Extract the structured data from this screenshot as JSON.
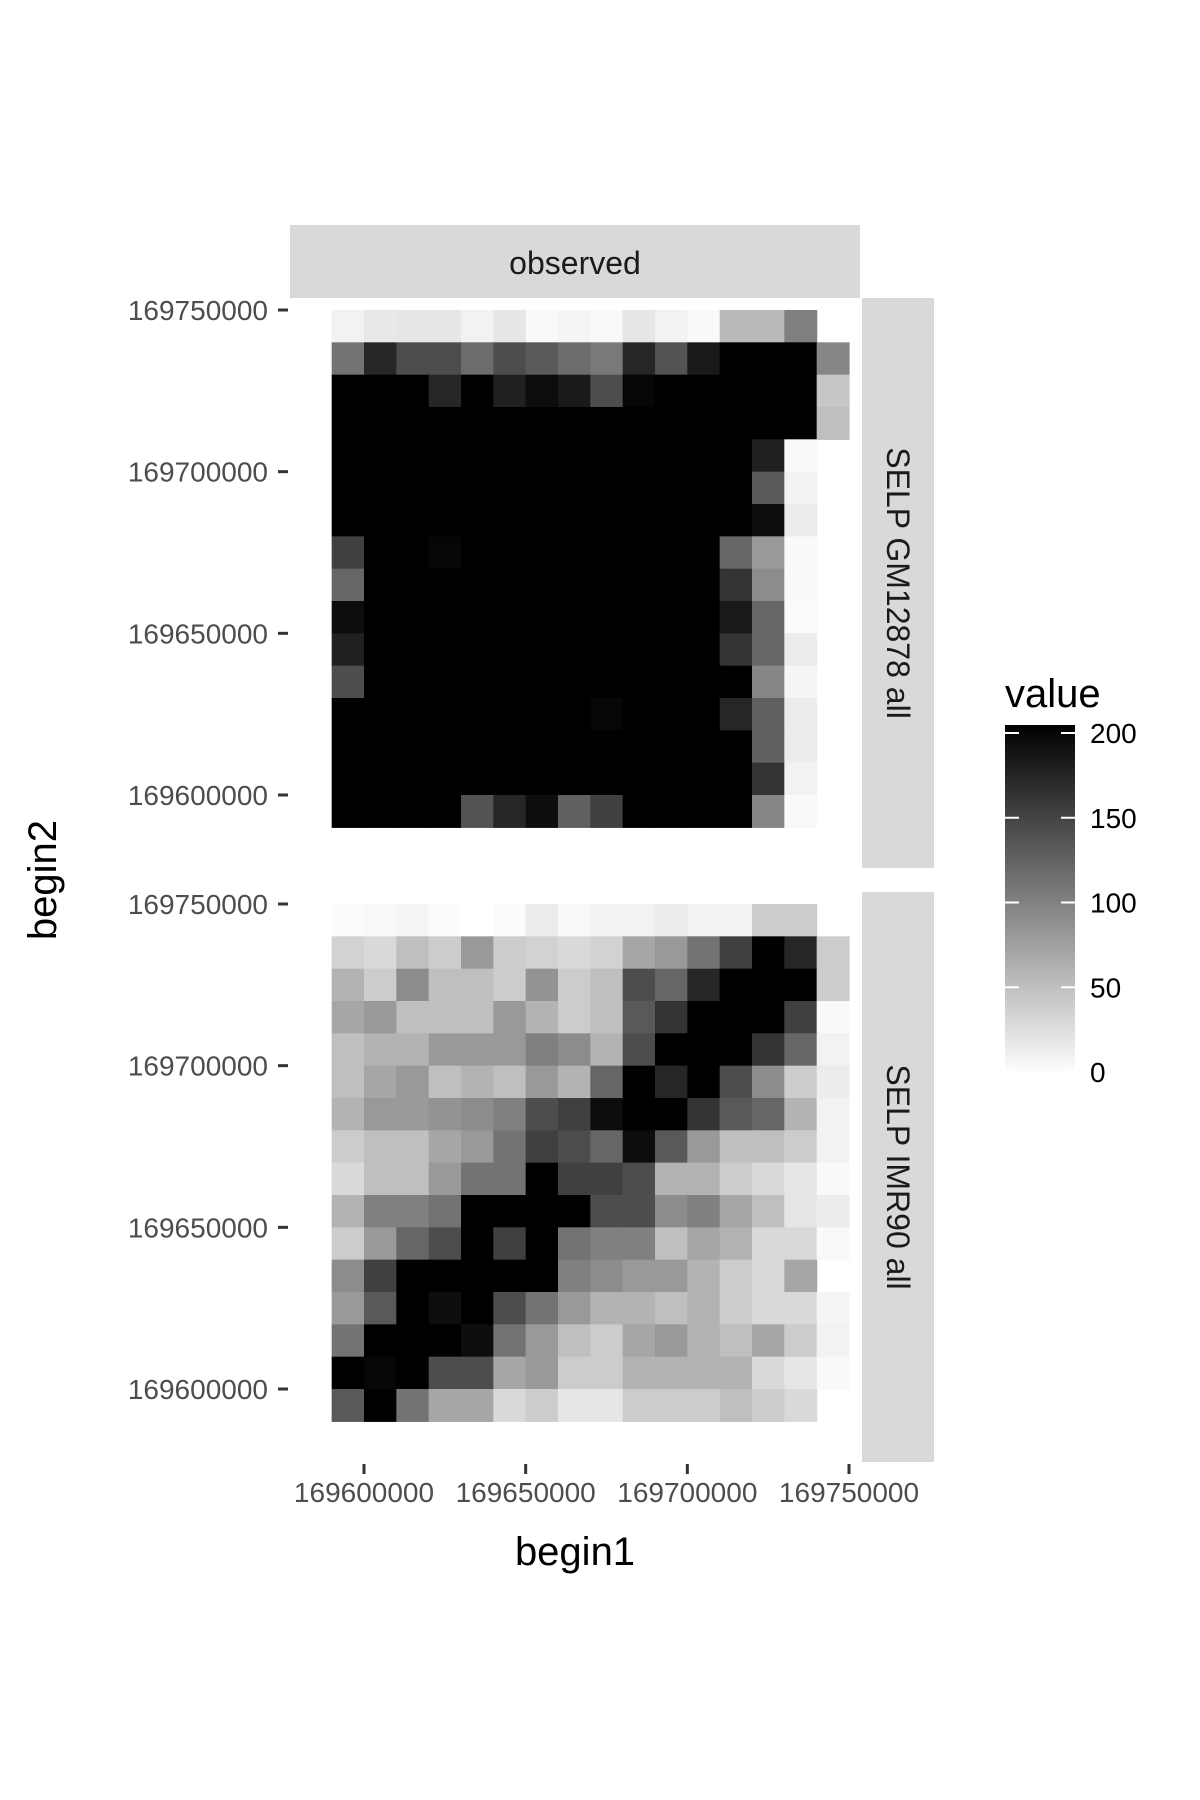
{
  "chart_data": {
    "type": "heatmap",
    "title": "",
    "xlabel": "begin1",
    "ylabel": "begin2",
    "x_ticks": [
      169600000,
      169650000,
      169700000,
      169750000
    ],
    "y_ticks": [
      169600000,
      169650000,
      169700000,
      169750000
    ],
    "x_tick_labels": [
      "169600000",
      "169650000",
      "169700000",
      "169750000"
    ],
    "y_tick_labels": [
      "169600000",
      "169650000",
      "169700000",
      "169750000"
    ],
    "bin_size": 10000,
    "x_bins": [
      169590000,
      169600000,
      169610000,
      169620000,
      169630000,
      169640000,
      169650000,
      169660000,
      169670000,
      169680000,
      169690000,
      169700000,
      169710000,
      169720000,
      169730000,
      169740000
    ],
    "y_bins": [
      169740000,
      169730000,
      169720000,
      169710000,
      169700000,
      169690000,
      169680000,
      169670000,
      169660000,
      169650000,
      169640000,
      169630000,
      169620000,
      169610000,
      169600000,
      169590000
    ],
    "column_facet": "observed",
    "row_facets": [
      "SELP GM12878 all",
      "SELP IMR90 all"
    ],
    "legend": {
      "title": "value",
      "min": 0,
      "max": 200,
      "ticks": [
        0,
        50,
        100,
        150,
        200
      ],
      "low_color": "#ffffff",
      "high_color": "#000000",
      "position": "right"
    },
    "grid": false,
    "panels": [
      {
        "row": "SELP GM12878 all",
        "values": [
          [
            10,
            18,
            20,
            20,
            10,
            20,
            5,
            8,
            5,
            20,
            10,
            5,
            55,
            55,
            100,
            null
          ],
          [
            110,
            170,
            140,
            140,
            115,
            140,
            130,
            115,
            105,
            170,
            135,
            180,
            200,
            200,
            200,
            95
          ],
          [
            200,
            200,
            200,
            170,
            200,
            175,
            190,
            180,
            140,
            195,
            200,
            200,
            200,
            200,
            200,
            45
          ],
          [
            200,
            200,
            200,
            200,
            200,
            200,
            200,
            200,
            200,
            200,
            200,
            200,
            200,
            200,
            200,
            50
          ],
          [
            200,
            200,
            200,
            200,
            200,
            200,
            200,
            200,
            200,
            200,
            200,
            200,
            200,
            175,
            5,
            null
          ],
          [
            200,
            200,
            200,
            200,
            200,
            200,
            200,
            200,
            200,
            200,
            200,
            200,
            200,
            130,
            10,
            null
          ],
          [
            200,
            200,
            200,
            200,
            200,
            200,
            200,
            200,
            200,
            200,
            200,
            200,
            200,
            190,
            15,
            null
          ],
          [
            150,
            200,
            200,
            195,
            200,
            200,
            200,
            200,
            200,
            200,
            200,
            200,
            120,
            80,
            5,
            null
          ],
          [
            120,
            200,
            200,
            200,
            200,
            200,
            200,
            200,
            200,
            200,
            200,
            200,
            160,
            90,
            5,
            null
          ],
          [
            190,
            200,
            200,
            200,
            200,
            200,
            200,
            200,
            200,
            200,
            200,
            200,
            180,
            120,
            3,
            null
          ],
          [
            175,
            200,
            200,
            200,
            200,
            200,
            200,
            200,
            200,
            200,
            200,
            200,
            160,
            120,
            15,
            null
          ],
          [
            140,
            200,
            200,
            200,
            200,
            200,
            200,
            200,
            200,
            200,
            200,
            200,
            200,
            95,
            8,
            null
          ],
          [
            200,
            200,
            200,
            200,
            200,
            200,
            200,
            200,
            195,
            200,
            200,
            200,
            170,
            125,
            15,
            null
          ],
          [
            200,
            200,
            200,
            200,
            200,
            200,
            200,
            200,
            200,
            200,
            200,
            200,
            200,
            125,
            15,
            null
          ],
          [
            200,
            200,
            200,
            200,
            200,
            200,
            200,
            200,
            200,
            200,
            200,
            200,
            200,
            160,
            10,
            null
          ],
          [
            200,
            200,
            200,
            200,
            135,
            170,
            190,
            125,
            150,
            200,
            200,
            200,
            200,
            95,
            5,
            null
          ]
        ]
      },
      {
        "row": "SELP IMR90 all",
        "values": [
          [
            3,
            5,
            8,
            3,
            0,
            3,
            15,
            5,
            10,
            10,
            15,
            10,
            10,
            40,
            40,
            null
          ],
          [
            35,
            30,
            50,
            40,
            80,
            40,
            35,
            30,
            35,
            70,
            80,
            110,
            150,
            200,
            170,
            40
          ],
          [
            60,
            40,
            90,
            50,
            50,
            40,
            85,
            40,
            50,
            140,
            120,
            170,
            200,
            200,
            200,
            40
          ],
          [
            70,
            80,
            50,
            50,
            50,
            80,
            60,
            40,
            50,
            130,
            160,
            200,
            200,
            200,
            150,
            5
          ],
          [
            50,
            60,
            60,
            80,
            80,
            80,
            100,
            90,
            60,
            140,
            200,
            200,
            200,
            160,
            120,
            10
          ],
          [
            50,
            70,
            80,
            50,
            60,
            50,
            80,
            60,
            120,
            200,
            170,
            200,
            140,
            90,
            40,
            15
          ],
          [
            60,
            80,
            80,
            85,
            90,
            100,
            140,
            150,
            190,
            200,
            200,
            160,
            130,
            120,
            60,
            10
          ],
          [
            40,
            50,
            50,
            70,
            80,
            110,
            150,
            140,
            120,
            190,
            130,
            80,
            50,
            50,
            40,
            10
          ],
          [
            30,
            50,
            50,
            80,
            110,
            110,
            200,
            150,
            150,
            140,
            60,
            60,
            40,
            30,
            20,
            5
          ],
          [
            60,
            100,
            100,
            110,
            200,
            200,
            200,
            200,
            140,
            140,
            90,
            100,
            70,
            50,
            20,
            15
          ],
          [
            40,
            80,
            120,
            140,
            200,
            150,
            200,
            110,
            100,
            100,
            50,
            70,
            60,
            30,
            30,
            5
          ],
          [
            90,
            150,
            200,
            200,
            200,
            200,
            200,
            100,
            90,
            80,
            80,
            60,
            40,
            30,
            70,
            null
          ],
          [
            80,
            130,
            200,
            190,
            200,
            140,
            110,
            80,
            60,
            60,
            50,
            60,
            40,
            30,
            30,
            8
          ],
          [
            110,
            200,
            200,
            200,
            190,
            110,
            80,
            50,
            40,
            70,
            80,
            60,
            50,
            70,
            40,
            10
          ],
          [
            200,
            195,
            200,
            140,
            140,
            70,
            80,
            40,
            40,
            60,
            60,
            60,
            60,
            30,
            20,
            5
          ],
          [
            130,
            200,
            110,
            70,
            70,
            30,
            40,
            20,
            20,
            40,
            40,
            40,
            50,
            40,
            30,
            null
          ]
        ]
      }
    ]
  }
}
